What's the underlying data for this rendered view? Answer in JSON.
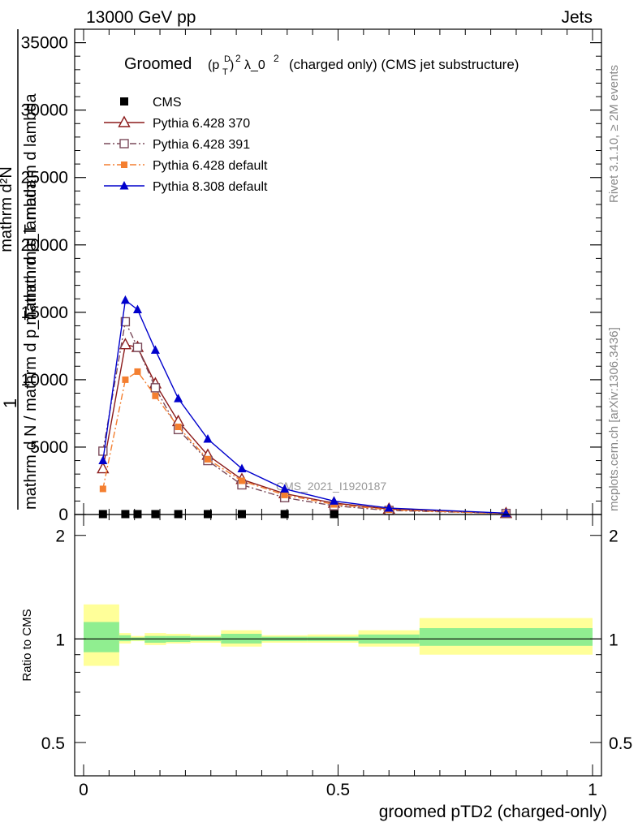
{
  "header": {
    "left": "13000 GeV pp",
    "right": "Jets"
  },
  "side_labels": {
    "rivet": "Rivet 3.1.10, ≥ 2M events",
    "mcplots": "mcplots.cern.ch [arXiv:1306.3436]"
  },
  "watermark": "CMS_2021_I1920187",
  "colors": {
    "cms": "#000000",
    "p370": "#8b1a1a",
    "p391": "#7a4a5a",
    "p6def": "#f47f30",
    "p8def": "#0000cc",
    "band_inner": "#90ee90",
    "band_outer": "#ffff99"
  },
  "chart_data": [
    {
      "type": "line",
      "title": "Groomed",
      "title_formula": {
        "p": "(p",
        "sup": "D",
        "sub": "T",
        "close": ")",
        "exp": "2",
        "rest": "λ_0",
        "exp2": "2",
        "suffix": "(charged only) (CMS jet substructure)"
      },
      "ylabel_lines": [
        "mathrm d N / mathrm d p_T mathrm d lambda",
        "mathrm d p_T mathrm d lambda"
      ],
      "ylabel_top": "mathrm d²N",
      "ylabel_one": "1",
      "ylim": [
        0,
        36000
      ],
      "xlim": [
        0,
        1
      ],
      "yticks": [
        "0",
        "5000",
        "10000",
        "15000",
        "20000",
        "25000",
        "30000",
        "35000"
      ],
      "series": [
        {
          "name": "CMS",
          "marker": "filled-square",
          "x": [
            0.038,
            0.082,
            0.106,
            0.141,
            0.186,
            0.244,
            0.311,
            0.395,
            0.492
          ],
          "y": [
            30,
            30,
            30,
            30,
            30,
            30,
            30,
            30,
            30
          ]
        },
        {
          "name": "Pythia 6.428 370",
          "marker": "open-triangle",
          "x": [
            0.038,
            0.082,
            0.106,
            0.141,
            0.186,
            0.244,
            0.311,
            0.395,
            0.492,
            0.6,
            0.83
          ],
          "y": [
            3400,
            12600,
            12400,
            9700,
            6900,
            4400,
            2600,
            1550,
            850,
            400,
            80
          ]
        },
        {
          "name": "Pythia 6.428 391",
          "marker": "open-square",
          "x": [
            0.038,
            0.082,
            0.106,
            0.141,
            0.186,
            0.244,
            0.311,
            0.395,
            0.492,
            0.6,
            0.83
          ],
          "y": [
            4700,
            14300,
            12400,
            9400,
            6300,
            4000,
            2200,
            1250,
            650,
            300,
            80
          ]
        },
        {
          "name": "Pythia 6.428 default",
          "marker": "filled-small-square",
          "x": [
            0.038,
            0.082,
            0.106,
            0.141,
            0.186,
            0.244,
            0.311,
            0.395,
            0.492,
            0.6,
            0.83
          ],
          "y": [
            1900,
            10000,
            10600,
            8800,
            6500,
            4100,
            2500,
            1450,
            750,
            350,
            60
          ]
        },
        {
          "name": "Pythia 8.308 default",
          "marker": "filled-triangle",
          "x": [
            0.038,
            0.082,
            0.106,
            0.141,
            0.186,
            0.244,
            0.311,
            0.395,
            0.492,
            0.6,
            0.83
          ],
          "y": [
            4000,
            15900,
            15200,
            12200,
            8600,
            5600,
            3400,
            1900,
            1000,
            480,
            100
          ]
        }
      ]
    },
    {
      "type": "area",
      "ylabel": "Ratio to CMS",
      "xlabel": "groomed pTD2 (charged-only)",
      "ylim": [
        0.4,
        2.3
      ],
      "log_y": true,
      "xticks": [
        "0",
        "0.5",
        "1"
      ],
      "yticks_left": [
        "0.5",
        "1",
        "2"
      ],
      "yticks_right": [
        "0.5",
        "1",
        "2"
      ],
      "bins": [
        {
          "lo": 0.0,
          "hi": 0.07,
          "inner": [
            0.915,
            1.12
          ],
          "outer": [
            0.835,
            1.26
          ]
        },
        {
          "lo": 0.07,
          "hi": 0.093,
          "inner": [
            0.985,
            1.025
          ],
          "outer": [
            0.97,
            1.04
          ]
        },
        {
          "lo": 0.093,
          "hi": 0.12,
          "inner": [
            0.99,
            1.01
          ],
          "outer": [
            0.985,
            1.02
          ]
        },
        {
          "lo": 0.12,
          "hi": 0.162,
          "inner": [
            0.975,
            1.02
          ],
          "outer": [
            0.96,
            1.04
          ]
        },
        {
          "lo": 0.162,
          "hi": 0.21,
          "inner": [
            0.98,
            1.02
          ],
          "outer": [
            0.97,
            1.035
          ]
        },
        {
          "lo": 0.21,
          "hi": 0.27,
          "inner": [
            0.985,
            1.015
          ],
          "outer": [
            0.975,
            1.025
          ]
        },
        {
          "lo": 0.27,
          "hi": 0.35,
          "inner": [
            0.97,
            1.035
          ],
          "outer": [
            0.95,
            1.06
          ]
        },
        {
          "lo": 0.35,
          "hi": 0.44,
          "inner": [
            0.985,
            1.015
          ],
          "outer": [
            0.975,
            1.025
          ]
        },
        {
          "lo": 0.44,
          "hi": 0.54,
          "inner": [
            0.985,
            1.015
          ],
          "outer": [
            0.975,
            1.03
          ]
        },
        {
          "lo": 0.54,
          "hi": 0.66,
          "inner": [
            0.97,
            1.03
          ],
          "outer": [
            0.95,
            1.06
          ]
        },
        {
          "lo": 0.66,
          "hi": 1.0,
          "inner": [
            0.955,
            1.075
          ],
          "outer": [
            0.9,
            1.15
          ]
        }
      ]
    }
  ]
}
